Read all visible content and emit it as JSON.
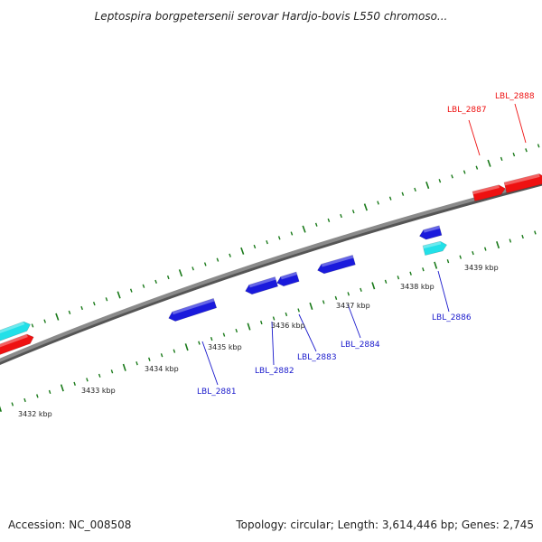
{
  "title": "Leptospira borgpetersenii serovar Hardjo-bovis L550 chromoso...",
  "footer": {
    "accession": "Accession: NC_008508",
    "summary": "Topology: circular; Length: 3,614,446 bp; Genes: 2,745"
  },
  "colors": {
    "backbone": "#8a8a8a",
    "tick": "#1a7a1a",
    "forward_gene": "#ee1111",
    "reverse_gene": "#1a1adc",
    "other_feature": "#22e0e8",
    "forward_label": "#ee1111",
    "reverse_label": "#1a1acc"
  },
  "ruler_labels": [
    "3432 kbp",
    "3433 kbp",
    "3434 kbp",
    "3435 kbp",
    "3436 kbp",
    "3437 kbp",
    "3438 kbp",
    "3439 kbp"
  ],
  "gene_labels": [
    "LBL_2881",
    "LBL_2882",
    "LBL_2883",
    "LBL_2884",
    "LBL_2886",
    "LBL_2887",
    "LBL_2888"
  ]
}
